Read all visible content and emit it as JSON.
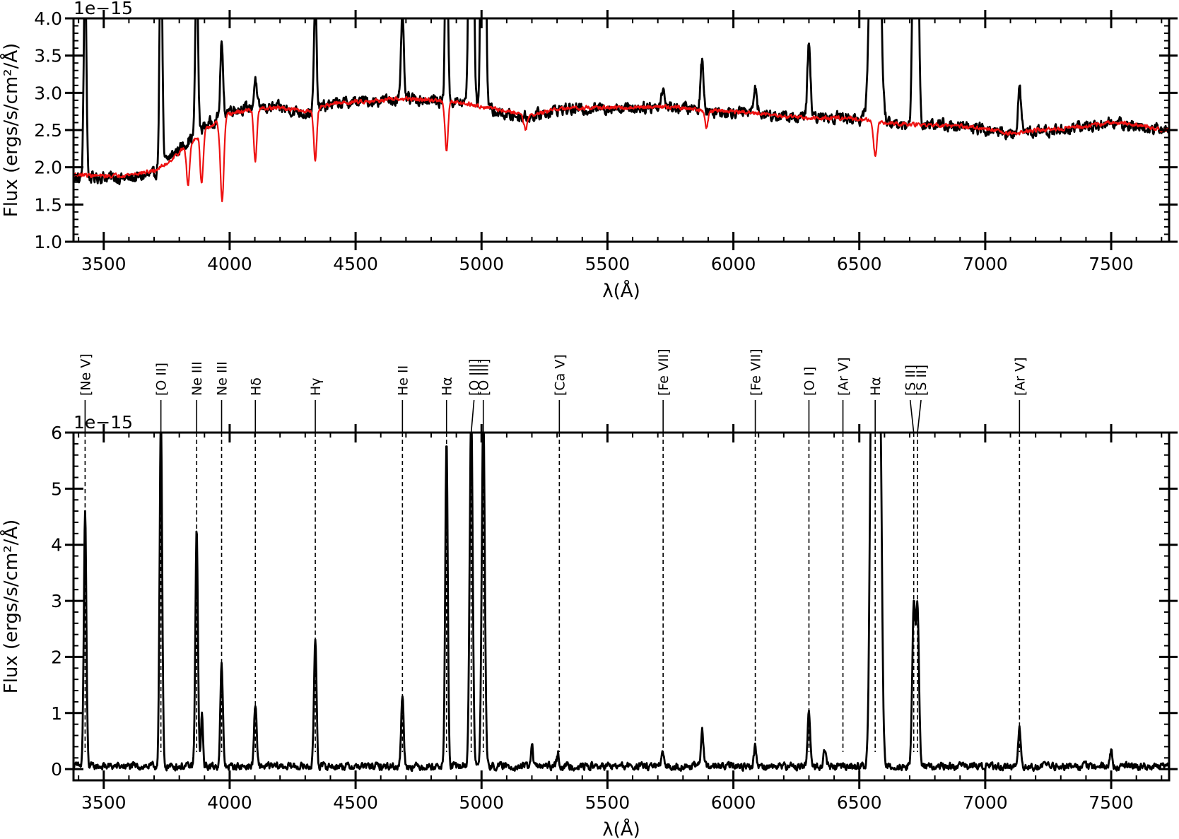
{
  "chart_data": [
    {
      "type": "line",
      "xlabel": "λ(Å)",
      "ylabel": "Flux (ergs/s/cm²/Å)",
      "offset_text": "1e−15",
      "xlim": [
        3380,
        7730
      ],
      "ylim": [
        1.0,
        4.0
      ],
      "y_scale_factor": 1e-15,
      "xticks": [
        3500,
        4000,
        4500,
        5000,
        5500,
        6000,
        6500,
        7000,
        7500
      ],
      "yticks": [
        1.0,
        1.5,
        2.0,
        2.5,
        3.0,
        3.5,
        4.0
      ],
      "ytick_labels": [
        "1.0",
        "1.5",
        "2.0",
        "2.5",
        "3.0",
        "3.5",
        "4.0"
      ],
      "grid": false,
      "series": [
        {
          "role": "observed",
          "color": "#000000",
          "continuum": [
            [
              3400,
              1.85
            ],
            [
              3500,
              1.87
            ],
            [
              3600,
              1.85
            ],
            [
              3700,
              1.9
            ],
            [
              3750,
              2.1
            ],
            [
              3800,
              2.25
            ],
            [
              3850,
              2.4
            ],
            [
              3900,
              2.55
            ],
            [
              3950,
              2.65
            ],
            [
              4000,
              2.78
            ],
            [
              4100,
              2.8
            ],
            [
              4200,
              2.8
            ],
            [
              4300,
              2.72
            ],
            [
              4400,
              2.85
            ],
            [
              4500,
              2.88
            ],
            [
              4600,
              2.9
            ],
            [
              4700,
              2.92
            ],
            [
              4800,
              2.9
            ],
            [
              4900,
              2.88
            ],
            [
              5000,
              2.8
            ],
            [
              5100,
              2.7
            ],
            [
              5200,
              2.68
            ],
            [
              5300,
              2.78
            ],
            [
              5400,
              2.78
            ],
            [
              5500,
              2.8
            ],
            [
              5600,
              2.8
            ],
            [
              5700,
              2.82
            ],
            [
              5800,
              2.8
            ],
            [
              5900,
              2.75
            ],
            [
              6000,
              2.75
            ],
            [
              6100,
              2.72
            ],
            [
              6200,
              2.68
            ],
            [
              6300,
              2.66
            ],
            [
              6400,
              2.68
            ],
            [
              6500,
              2.65
            ],
            [
              6600,
              2.6
            ],
            [
              6700,
              2.55
            ],
            [
              6800,
              2.58
            ],
            [
              6900,
              2.55
            ],
            [
              7000,
              2.5
            ],
            [
              7100,
              2.45
            ],
            [
              7200,
              2.48
            ],
            [
              7300,
              2.5
            ],
            [
              7400,
              2.55
            ],
            [
              7500,
              2.6
            ],
            [
              7600,
              2.55
            ],
            [
              7700,
              2.5
            ]
          ],
          "noise_amplitude": 0.12,
          "emission_lines": [
            [
              3426,
              3.0,
              5
            ],
            [
              3727,
              3.5,
              5
            ],
            [
              3869,
              2.5,
              5
            ],
            [
              3968,
              1.0,
              5
            ],
            [
              4102,
              0.4,
              5
            ],
            [
              4340,
              1.5,
              5
            ],
            [
              4686,
              1.2,
              5
            ],
            [
              4861,
              3.0,
              5
            ],
            [
              4959,
              8,
              7
            ],
            [
              5007,
              8,
              7
            ],
            [
              5720,
              0.25,
              6
            ],
            [
              5876,
              0.7,
              6
            ],
            [
              6087,
              0.4,
              6
            ],
            [
              6300,
              1.0,
              6
            ],
            [
              6563,
              8,
              14
            ],
            [
              6716,
              3,
              6
            ],
            [
              6731,
              3,
              6
            ],
            [
              7136,
              0.6,
              6
            ]
          ]
        },
        {
          "role": "model",
          "color": "#ee1111",
          "continuum": [
            [
              3400,
              1.9
            ],
            [
              3500,
              1.88
            ],
            [
              3600,
              1.9
            ],
            [
              3700,
              1.95
            ],
            [
              3750,
              2.05
            ],
            [
              3800,
              2.2
            ],
            [
              3850,
              2.35
            ],
            [
              3900,
              2.5
            ],
            [
              3950,
              2.6
            ],
            [
              4000,
              2.72
            ],
            [
              4100,
              2.78
            ],
            [
              4200,
              2.8
            ],
            [
              4300,
              2.75
            ],
            [
              4400,
              2.85
            ],
            [
              4500,
              2.88
            ],
            [
              4600,
              2.9
            ],
            [
              4700,
              2.92
            ],
            [
              4800,
              2.9
            ],
            [
              4900,
              2.88
            ],
            [
              5000,
              2.82
            ],
            [
              5100,
              2.75
            ],
            [
              5200,
              2.7
            ],
            [
              5300,
              2.78
            ],
            [
              5400,
              2.8
            ],
            [
              5500,
              2.8
            ],
            [
              5600,
              2.8
            ],
            [
              5700,
              2.82
            ],
            [
              5800,
              2.8
            ],
            [
              5900,
              2.76
            ],
            [
              6000,
              2.75
            ],
            [
              6100,
              2.72
            ],
            [
              6200,
              2.68
            ],
            [
              6300,
              2.66
            ],
            [
              6400,
              2.66
            ],
            [
              6500,
              2.65
            ],
            [
              6600,
              2.6
            ],
            [
              6700,
              2.57
            ],
            [
              6800,
              2.57
            ],
            [
              6900,
              2.55
            ],
            [
              7000,
              2.52
            ],
            [
              7100,
              2.45
            ],
            [
              7200,
              2.5
            ],
            [
              7300,
              2.52
            ],
            [
              7400,
              2.55
            ],
            [
              7500,
              2.6
            ],
            [
              7600,
              2.58
            ],
            [
              7700,
              2.5
            ]
          ],
          "noise_amplitude": 0.04,
          "absorption_lines": [
            [
              3835,
              0.55,
              6
            ],
            [
              3889,
              0.7,
              6
            ],
            [
              3970,
              1.1,
              7
            ],
            [
              4102,
              0.7,
              6
            ],
            [
              4340,
              0.7,
              6
            ],
            [
              4861,
              0.65,
              6
            ],
            [
              5175,
              0.2,
              7
            ],
            [
              5893,
              0.25,
              6
            ],
            [
              6563,
              0.45,
              7
            ]
          ]
        }
      ]
    },
    {
      "type": "line",
      "xlabel": "λ(Å)",
      "ylabel": "Flux (ergs/s/cm²/Å)",
      "offset_text": "1e−15",
      "xlim": [
        3380,
        7730
      ],
      "ylim": [
        -0.2,
        6.0
      ],
      "y_scale_factor": 1e-15,
      "xticks": [
        3500,
        4000,
        4500,
        5000,
        5500,
        6000,
        6500,
        7000,
        7500
      ],
      "yticks": [
        0,
        1,
        2,
        3,
        4,
        5,
        6
      ],
      "ytick_labels": [
        "0",
        "1",
        "2",
        "3",
        "4",
        "5",
        "6"
      ],
      "grid": false,
      "series": [
        {
          "role": "residual",
          "color": "#000000",
          "continuum": [
            [
              3400,
              0.05
            ],
            [
              7700,
              0.05
            ]
          ],
          "noise_amplitude": 0.1,
          "emission_lines": [
            [
              3426,
              4.55,
              5
            ],
            [
              3727,
              6.3,
              5
            ],
            [
              3869,
              4.25,
              5
            ],
            [
              3890,
              0.9,
              4
            ],
            [
              3968,
              1.8,
              5
            ],
            [
              4102,
              1.1,
              5
            ],
            [
              4340,
              2.3,
              5
            ],
            [
              4686,
              1.25,
              5
            ],
            [
              4861,
              5.8,
              5
            ],
            [
              4959,
              6.4,
              6
            ],
            [
              5007,
              6.4,
              6
            ],
            [
              5200,
              0.4,
              4
            ],
            [
              5303,
              0.25,
              4
            ],
            [
              5720,
              0.2,
              5
            ],
            [
              5876,
              0.65,
              5
            ],
            [
              6087,
              0.35,
              5
            ],
            [
              6300,
              1.0,
              5
            ],
            [
              6363,
              0.3,
              5
            ],
            [
              6548,
              5.5,
              7
            ],
            [
              6563,
              6.5,
              10
            ],
            [
              6583,
              5.7,
              7
            ],
            [
              6716,
              2.8,
              6
            ],
            [
              6731,
              2.8,
              6
            ],
            [
              7136,
              0.65,
              5
            ],
            [
              7500,
              0.3,
              4
            ]
          ]
        }
      ],
      "annotations": [
        {
          "label": "[Ne V]",
          "x": 3426
        },
        {
          "label": "[O II]",
          "x": 3727
        },
        {
          "label": "Ne III",
          "x": 3869
        },
        {
          "label": "Ne III",
          "x": 3968
        },
        {
          "label": "Hδ",
          "x": 4102
        },
        {
          "label": "Hγ",
          "x": 4340
        },
        {
          "label": "He II",
          "x": 4686
        },
        {
          "label": "Hα",
          "x": 4861
        },
        {
          "label": "[O III]",
          "x": 4959
        },
        {
          "label": "[O III]",
          "x": 5007
        },
        {
          "label": "[Ca V]",
          "x": 5309
        },
        {
          "label": "[Fe VII]",
          "x": 5721
        },
        {
          "label": "[Fe VII]",
          "x": 6087
        },
        {
          "label": "[O I]",
          "x": 6300
        },
        {
          "label": "[Ar V]",
          "x": 6435
        },
        {
          "label": "Hα",
          "x": 6563
        },
        {
          "label": "[S II]",
          "x": 6716
        },
        {
          "label": "[S II]",
          "x": 6731
        },
        {
          "label": "[Ar V]",
          "x": 7136
        }
      ]
    }
  ]
}
